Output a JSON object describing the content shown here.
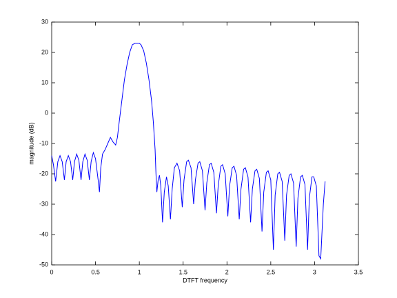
{
  "chart_data": {
    "type": "line",
    "xlabel": "DTFT frequency",
    "ylabel": "magnitude (dB)",
    "xlim": [
      0,
      3.5
    ],
    "xticks": [
      0,
      0.5,
      1,
      1.5,
      2,
      2.5,
      3,
      3.5
    ],
    "ylim": [
      -50,
      30
    ],
    "yticks": [
      -50,
      -40,
      -30,
      -20,
      -10,
      0,
      10,
      20,
      30
    ],
    "grid": false,
    "x": [
      0,
      0.02,
      0.045,
      0.07,
      0.095,
      0.12,
      0.145,
      0.165,
      0.19,
      0.215,
      0.24,
      0.26,
      0.285,
      0.31,
      0.335,
      0.355,
      0.38,
      0.405,
      0.43,
      0.45,
      0.475,
      0.5,
      0.53,
      0.545,
      0.56,
      0.58,
      0.61,
      0.64,
      0.67,
      0.7,
      0.73,
      0.75,
      0.77,
      0.8,
      0.83,
      0.86,
      0.89,
      0.92,
      0.95,
      1.0,
      1.02,
      1.05,
      1.08,
      1.11,
      1.14,
      1.16,
      1.18,
      1.19,
      1.2,
      1.215,
      1.23,
      1.245,
      1.265,
      1.285,
      1.31,
      1.33,
      1.355,
      1.375,
      1.4,
      1.43,
      1.46,
      1.49,
      1.51,
      1.54,
      1.56,
      1.59,
      1.62,
      1.64,
      1.67,
      1.69,
      1.72,
      1.75,
      1.77,
      1.8,
      1.82,
      1.85,
      1.88,
      1.9,
      1.93,
      1.95,
      1.98,
      2.01,
      2.03,
      2.06,
      2.08,
      2.11,
      2.14,
      2.16,
      2.19,
      2.21,
      2.24,
      2.27,
      2.29,
      2.32,
      2.34,
      2.37,
      2.4,
      2.42,
      2.45,
      2.47,
      2.5,
      2.53,
      2.55,
      2.58,
      2.6,
      2.63,
      2.66,
      2.68,
      2.71,
      2.73,
      2.76,
      2.79,
      2.81,
      2.84,
      2.86,
      2.89,
      2.92,
      2.94,
      2.97,
      2.99,
      3.02,
      3.05,
      3.07,
      3.1,
      3.12
    ],
    "series": [
      {
        "color": "#0000ff",
        "values": [
          -14,
          -17,
          -22.5,
          -16,
          -14,
          -16,
          -22,
          -16,
          -14,
          -16,
          -22,
          -16,
          -13.5,
          -15.5,
          -22,
          -16,
          -13.5,
          -15.5,
          -22,
          -16,
          -13,
          -15,
          -22,
          -26,
          -18,
          -13.5,
          -12,
          -10,
          -8,
          -9.5,
          -10.5,
          -8,
          -3,
          4,
          11,
          16,
          20,
          22.5,
          23,
          23,
          22.5,
          20.5,
          16.5,
          11,
          4,
          -3,
          -12,
          -20,
          -26,
          -22,
          -20.5,
          -24,
          -36,
          -26,
          -21,
          -24,
          -35,
          -25,
          -18,
          -16.5,
          -19,
          -31,
          -22,
          -16,
          -15.5,
          -18,
          -30,
          -22,
          -16.5,
          -16,
          -19,
          -32,
          -23,
          -17,
          -16.5,
          -19.5,
          -33,
          -24,
          -17.5,
          -17,
          -20,
          -34,
          -24,
          -18,
          -17.5,
          -20.5,
          -35,
          -25,
          -18.5,
          -18,
          -21,
          -36,
          -25,
          -19,
          -18.5,
          -21.5,
          -39,
          -26,
          -19.5,
          -19,
          -22,
          -45,
          -27,
          -20,
          -19.5,
          -22.5,
          -42,
          -27,
          -20.5,
          -20,
          -23,
          -44,
          -28,
          -21,
          -20.5,
          -23.5,
          -45,
          -28,
          -21,
          -21,
          -24,
          -47,
          -48,
          -30,
          -22.5
        ]
      }
    ]
  }
}
